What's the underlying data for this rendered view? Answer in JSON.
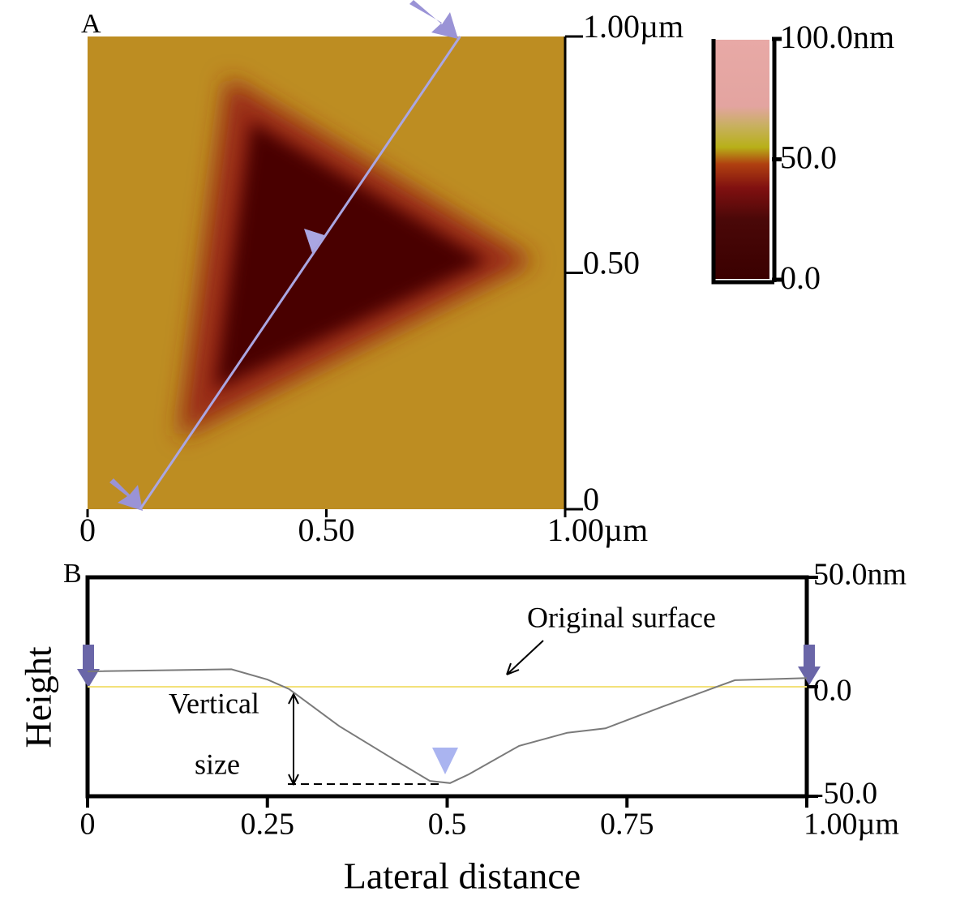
{
  "chart_data": [
    {
      "type": "image",
      "label": "A",
      "xlim": [
        0,
        1
      ],
      "xticks": [
        0,
        {
          "value": 0.5,
          "label": "0.50"
        },
        {
          "value": 1,
          "label": "1.00µm"
        }
      ],
      "ylim": [
        0,
        1
      ],
      "yticks": [
        0,
        {
          "value": 0.5,
          "label": "0.50"
        },
        {
          "value": 1,
          "label": "1.00µm"
        }
      ],
      "colorbar": {
        "lim": [
          0,
          100
        ],
        "ticks": [
          {
            "value": 0,
            "label": "0.0"
          },
          {
            "value": 50,
            "label": "50.0"
          },
          {
            "value": 100,
            "label": "100.0nm"
          }
        ]
      },
      "scan_line": {
        "x": [
          0.11,
          0.78
        ],
        "y": [
          0,
          1
        ],
        "color": "#aaa6e2"
      }
    },
    {
      "type": "line",
      "label": "B",
      "y_label": "Height",
      "x_label": "Lateral distance",
      "x": [
        0,
        0.2,
        0.25,
        0.28,
        0.35,
        0.43,
        0.476,
        0.504,
        0.53,
        0.6,
        0.667,
        0.72,
        0.8,
        0.9,
        1.0
      ],
      "values": [
        7,
        8,
        3.3,
        -1,
        -18,
        -34,
        -43,
        -44,
        -40,
        -27,
        -21,
        -19,
        -9,
        3,
        4
      ],
      "color": "#7a7a7a",
      "xlim": [
        0,
        1
      ],
      "xticks": [
        0,
        0.25,
        0.5,
        0.75,
        {
          "value": 1,
          "label": "1.00µm"
        }
      ],
      "ylim": [
        -50,
        50
      ],
      "yticks": [
        {
          "value": -50,
          "label": "-50.0"
        },
        {
          "value": 0,
          "label": "0.0"
        },
        {
          "value": 50,
          "label": "50.0nm"
        }
      ],
      "reference_line": {
        "value": 0,
        "color": "#f3e17a"
      },
      "annotations": [
        "Original surface",
        "Vertical",
        "size"
      ]
    }
  ]
}
